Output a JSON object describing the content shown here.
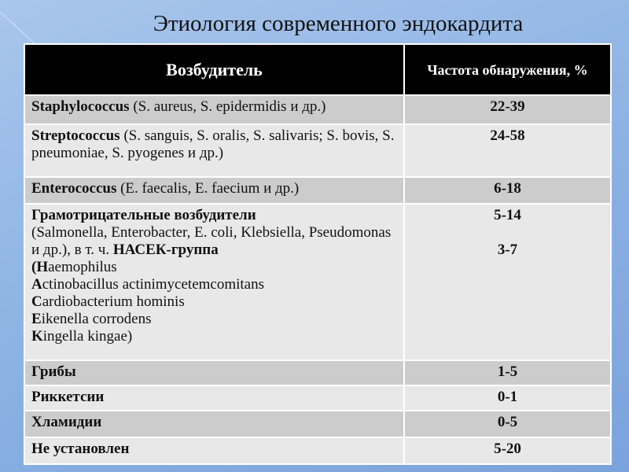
{
  "title": "Этиология современного эндокардита",
  "header": {
    "pathogen": "Возбудитель",
    "frequency": "Частота обнаружения, %"
  },
  "rows": [
    {
      "bold": "Staphylococcus",
      "rest": " (S. aureus, S. epidermidis и др.)",
      "value": "22-39"
    },
    {
      "bold": "Streptococcus",
      "rest": " (S. sanguis, S. oralis, S. salivaris; S. bovis, S. pneumoniae, S. pyogenes и др.)",
      "value": "24-58"
    },
    {
      "bold": "Enterococcus",
      "rest": " (E. faecalis, E. faecium и др.)",
      "value": "6-18"
    },
    {
      "bold": "Грамотрицательные возбудители",
      "rest": "(Salmonella, Enterobacter, E. coli, Klebsiella, Pseudomonas и др.), в т. ч. ",
      "bold2": "НАСЕК-группа",
      "hacek": [
        {
          "b": "(H",
          "t": "aemophilus"
        },
        {
          "b": "A",
          "t": "ctinobacillus actinimycetemcomitans"
        },
        {
          "b": "C",
          "t": "ardiobacterium hominis"
        },
        {
          "b": "E",
          "t": "ikenella corrodens"
        },
        {
          "b": "K",
          "t": "ingella kingae)"
        }
      ],
      "value": "5-14",
      "value2": "3-7"
    },
    {
      "bold": "Грибы",
      "value": "1-5"
    },
    {
      "bold": "Риккетсии",
      "value": "0-1"
    },
    {
      "bold": "Хламидии",
      "value": "0-5"
    },
    {
      "bold": "Не установлен",
      "value": "5-20"
    }
  ]
}
